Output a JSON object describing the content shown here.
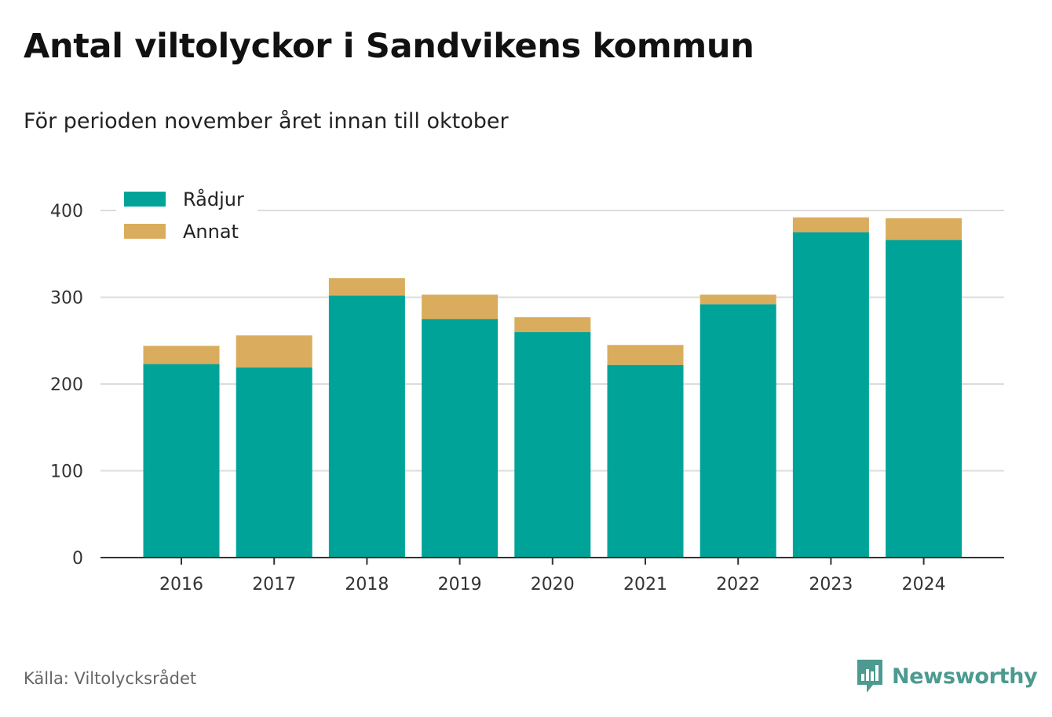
{
  "title": "Antal viltolyckor i Sandvikens kommun",
  "subtitle": "För perioden november året innan till oktober",
  "source": "Källa: Viltolycksrådet",
  "brand": {
    "name": "Newsworthy",
    "icon": "newsworthy-logo-icon",
    "color": "#4c9a90"
  },
  "chart_data": {
    "type": "bar",
    "stacked": true,
    "categories": [
      "2016",
      "2017",
      "2018",
      "2019",
      "2020",
      "2021",
      "2022",
      "2023",
      "2024"
    ],
    "series": [
      {
        "name": "Rådjur",
        "color": "#00a398",
        "values": [
          223,
          219,
          302,
          275,
          260,
          222,
          292,
          375,
          366
        ]
      },
      {
        "name": "Annat",
        "color": "#d9ad5d",
        "values": [
          21,
          37,
          20,
          28,
          17,
          23,
          11,
          17,
          25
        ]
      }
    ],
    "ylim": [
      0,
      400
    ],
    "yticks": [
      0,
      100,
      200,
      300,
      400
    ],
    "ytick_labels": [
      "0",
      "100",
      "200",
      "300",
      "400"
    ],
    "grid": true,
    "legend_position": "top-left"
  }
}
